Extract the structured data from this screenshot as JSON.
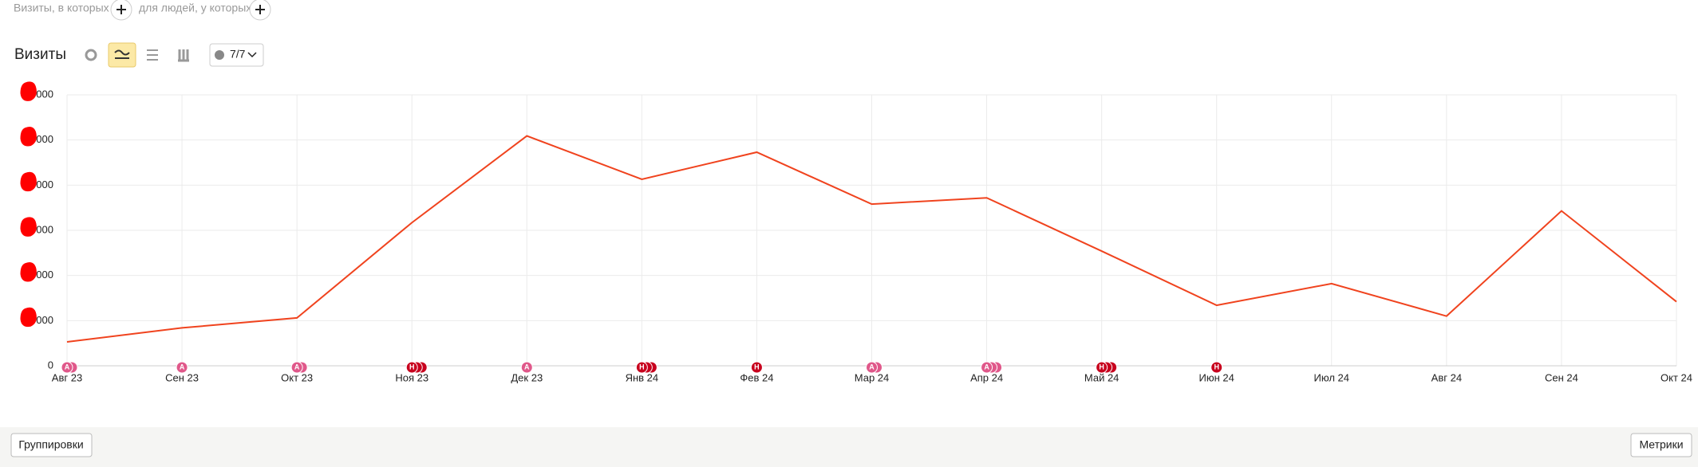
{
  "filters": {
    "visits_label": "Визиты, в которых",
    "people_label": "для людей, у которых"
  },
  "toolbar": {
    "title": "Визиты",
    "notes_counter": "7/7"
  },
  "footer": {
    "groupings_button": "Группировки",
    "metrics_button": "Метрики"
  },
  "chart_data": {
    "type": "line",
    "categories": [
      "Авг 23",
      "Сен 23",
      "Окт 23",
      "Ноя 23",
      "Дек 23",
      "Янв 24",
      "Фев 24",
      "Мар 24",
      "Апр 24",
      "Май 24",
      "Июн 24",
      "Июл 24",
      "Авг 24",
      "Сен 24",
      "Окт 24"
    ],
    "values": [
      530,
      840,
      1060,
      3170,
      5090,
      4130,
      4730,
      3580,
      3720,
      2540,
      1340,
      1820,
      1100,
      3430,
      1420
    ],
    "color": "#f0431e",
    "ylim": [
      0,
      6000
    ],
    "yticks": [
      0,
      {
        "value": 1000,
        "label": "000"
      },
      {
        "value": 2000,
        "label": "000"
      },
      {
        "value": 3000,
        "label": "000"
      },
      {
        "value": 4000,
        "label": "000"
      },
      {
        "value": 5000,
        "label": "000"
      },
      {
        "value": 6000,
        "label": "000"
      }
    ],
    "grid": true,
    "marker_labels": [
      "А",
      "А",
      "А",
      "Н",
      "А",
      "Н",
      "Н",
      "А",
      "А",
      "Н",
      "Н",
      null,
      null,
      null,
      null
    ],
    "marker_counts": [
      2,
      1,
      2,
      3,
      1,
      3,
      1,
      2,
      3,
      3,
      1,
      null,
      null,
      null,
      null
    ],
    "marker_colors": {
      "А": "#e0588a",
      "Н": "#c8001e"
    }
  }
}
